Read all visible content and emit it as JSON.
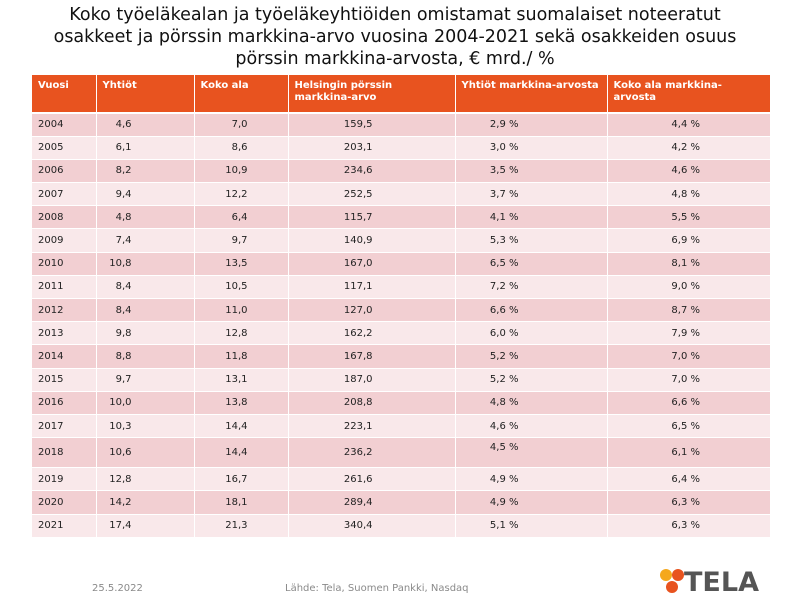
{
  "title": {
    "line1": "Koko työeläkealan ja työeläkeyhtiöiden omistamat suomalaiset noteeratut",
    "line2": "osakkeet ja pörssin markkina-arvo vuosina 2004-2021 sekä osakkeiden osuus",
    "line3": "pörssin markkina-arvosta, € mrd./ %"
  },
  "chart_data": {
    "type": "table",
    "columns": [
      "Vuosi",
      "Yhtiöt",
      "Koko ala",
      "Helsingin pörssin markkina-arvo",
      "Yhtiöt markkina-arvosta",
      "Koko ala markkina-arvosta"
    ],
    "rows": [
      [
        "2004",
        "4,6",
        "7,0",
        "159,5",
        "2,9 %",
        "4,4 %"
      ],
      [
        "2005",
        "6,1",
        "8,6",
        "203,1",
        "3,0 %",
        "4,2 %"
      ],
      [
        "2006",
        "8,2",
        "10,9",
        "234,6",
        "3,5 %",
        "4,6 %"
      ],
      [
        "2007",
        "9,4",
        "12,2",
        "252,5",
        "3,7 %",
        "4,8 %"
      ],
      [
        "2008",
        "4,8",
        "6,4",
        "115,7",
        "4,1 %",
        "5,5 %"
      ],
      [
        "2009",
        "7,4",
        "9,7",
        "140,9",
        "5,3 %",
        "6,9 %"
      ],
      [
        "2010",
        "10,8",
        "13,5",
        "167,0",
        "6,5 %",
        "8,1 %"
      ],
      [
        "2011",
        "8,4",
        "10,5",
        "117,1",
        "7,2 %",
        "9,0 %"
      ],
      [
        "2012",
        "8,4",
        "11,0",
        "127,0",
        "6,6 %",
        "8,7 %"
      ],
      [
        "2013",
        "9,8",
        "12,8",
        "162,2",
        "6,0 %",
        "7,9 %"
      ],
      [
        "2014",
        "8,8",
        "11,8",
        "167,8",
        "5,2 %",
        "7,0 %"
      ],
      [
        "2015",
        "9,7",
        "13,1",
        "187,0",
        "5,2 %",
        "7,0 %"
      ],
      [
        "2016",
        "10,0",
        "13,8",
        "208,8",
        "4,8 %",
        "6,6 %"
      ],
      [
        "2017",
        "10,3",
        "14,4",
        "223,1",
        "4,6 %",
        "6,5 %"
      ],
      [
        "2018",
        "10,6",
        "14,4",
        "236,2",
        "4,5 %",
        "6,1 %"
      ],
      [
        "2019",
        "12,8",
        "16,7",
        "261,6",
        "4,9 %",
        "6,4 %"
      ],
      [
        "2020",
        "14,2",
        "18,1",
        "289,4",
        "4,9 %",
        "6,3 %"
      ],
      [
        "2021",
        "17,4",
        "21,3",
        "340,4",
        "5,1 %",
        "6,3 %"
      ]
    ]
  },
  "footer": {
    "date": "25.5.2022",
    "source": "Lähde: Tela, Suomen Pankki, Nasdaq"
  },
  "logo": {
    "text": "TELA",
    "colors": {
      "orange": "#e8531f",
      "yellow": "#f5a81c",
      "gray": "#555555"
    }
  },
  "colors": {
    "header": "#e8531f",
    "row_odd": "#f2cfd2",
    "row_even": "#f9e8ea"
  }
}
